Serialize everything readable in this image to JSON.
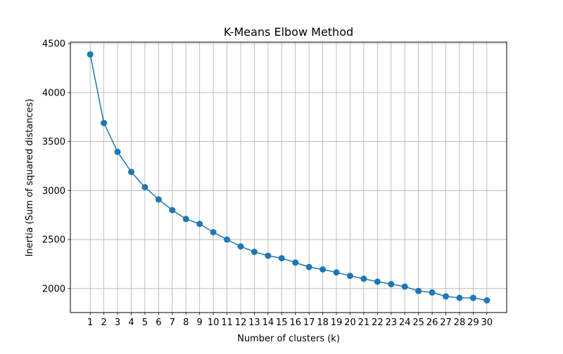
{
  "chart_data": {
    "type": "line",
    "title": "K-Means Elbow Method",
    "xlabel": "Number of clusters (k)",
    "ylabel": "Inertia (Sum of squared distances)",
    "x": [
      1,
      2,
      3,
      4,
      5,
      6,
      7,
      8,
      9,
      10,
      11,
      12,
      13,
      14,
      15,
      16,
      17,
      18,
      19,
      20,
      21,
      22,
      23,
      24,
      25,
      26,
      27,
      28,
      29,
      30
    ],
    "series": [
      {
        "name": "",
        "values": [
          4390,
          3690,
          3395,
          3190,
          3035,
          2910,
          2800,
          2710,
          2660,
          2575,
          2500,
          2430,
          2375,
          2335,
          2310,
          2265,
          2220,
          2195,
          2165,
          2130,
          2100,
          2070,
          2045,
          2020,
          1975,
          1960,
          1920,
          1905,
          1905,
          1880
        ]
      }
    ],
    "xticks": [
      1,
      2,
      3,
      4,
      5,
      6,
      7,
      8,
      9,
      10,
      11,
      12,
      13,
      14,
      15,
      16,
      17,
      18,
      19,
      20,
      21,
      22,
      23,
      24,
      25,
      26,
      27,
      28,
      29,
      30
    ],
    "yticks": [
      2000,
      2500,
      3000,
      3500,
      4000,
      4500
    ],
    "xlim": [
      -0.45,
      31.45
    ],
    "ylim": [
      1755,
      4515
    ],
    "grid": true,
    "legend": "none",
    "line_color": "#1f77b4",
    "grid_color": "#b0b0b0",
    "marker": "circle"
  }
}
